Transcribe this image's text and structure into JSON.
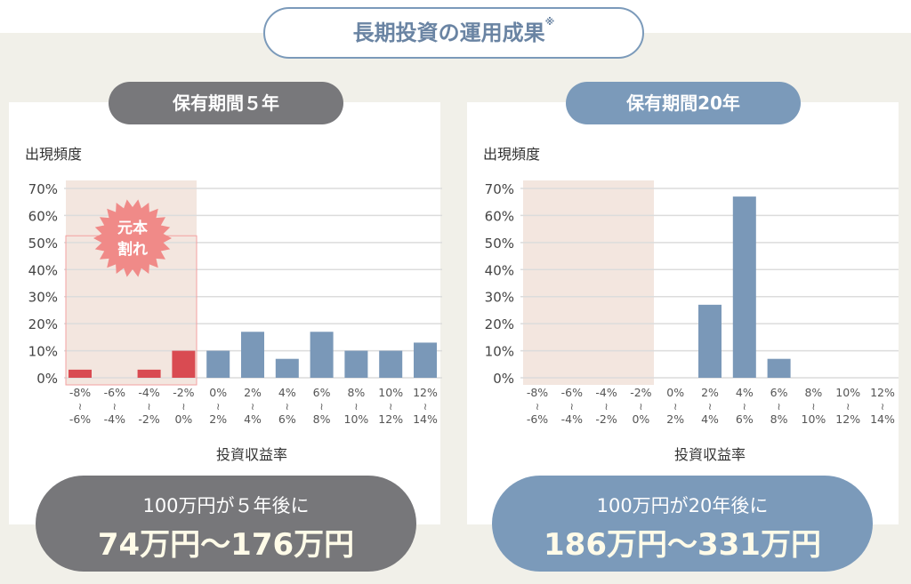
{
  "title": "長期投資の運用成果",
  "title_note": "※",
  "colors": {
    "gray": "#78787b",
    "blue": "#7b9aba",
    "red": "#d94b52",
    "shade": "#f3e6df",
    "bar_blue": "#7a98b8"
  },
  "chart_data": [
    {
      "type": "bar",
      "title": "保有期間５年",
      "ylabel": "出現頻度",
      "xlabel": "投資収益率",
      "ylim": [
        0,
        70
      ],
      "yticks": [
        "0%",
        "10%",
        "20%",
        "30%",
        "40%",
        "50%",
        "60%",
        "70%"
      ],
      "categories": [
        [
          "-8%",
          "-6%"
        ],
        [
          "-6%",
          "-4%"
        ],
        [
          "-4%",
          "-2%"
        ],
        [
          "-2%",
          "0%"
        ],
        [
          "0%",
          "2%"
        ],
        [
          "2%",
          "4%"
        ],
        [
          "4%",
          "6%"
        ],
        [
          "6%",
          "8%"
        ],
        [
          "8%",
          "10%"
        ],
        [
          "10%",
          "12%"
        ],
        [
          "12%",
          "14%"
        ]
      ],
      "values": [
        3,
        0,
        3,
        10,
        10,
        17,
        7,
        17,
        10,
        10,
        13
      ],
      "loss_label": [
        "元本",
        "割れ"
      ],
      "result_line1": "100万円が５年後に",
      "result_line2": "74万円〜176万円"
    },
    {
      "type": "bar",
      "title": "保有期間20年",
      "ylabel": "出現頻度",
      "xlabel": "投資収益率",
      "ylim": [
        0,
        70
      ],
      "yticks": [
        "0%",
        "10%",
        "20%",
        "30%",
        "40%",
        "50%",
        "60%",
        "70%"
      ],
      "categories": [
        [
          "-8%",
          "-6%"
        ],
        [
          "-6%",
          "-4%"
        ],
        [
          "-4%",
          "-2%"
        ],
        [
          "-2%",
          "0%"
        ],
        [
          "0%",
          "2%"
        ],
        [
          "2%",
          "4%"
        ],
        [
          "4%",
          "6%"
        ],
        [
          "6%",
          "8%"
        ],
        [
          "8%",
          "10%"
        ],
        [
          "10%",
          "12%"
        ],
        [
          "12%",
          "14%"
        ]
      ],
      "values": [
        0,
        0,
        0,
        0,
        0,
        27,
        67,
        7,
        0,
        0,
        0
      ],
      "result_line1": "100万円が20年後に",
      "result_line2": "186万円〜331万円"
    }
  ]
}
